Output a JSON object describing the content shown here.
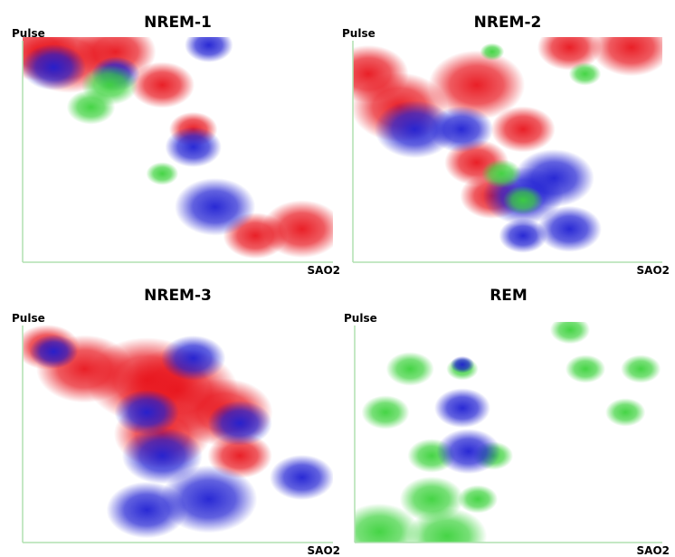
{
  "chart_data": [
    {
      "type": "scatter",
      "title": "NREM-1",
      "x_label": "SAO2",
      "y_label": "Pulse",
      "xlim": [
        0,
        100
      ],
      "ylim": [
        0,
        100
      ],
      "series": [
        {
          "color": "#e8141c",
          "x": [
            5,
            15,
            30,
            45,
            55,
            90,
            75
          ],
          "values": [
            95,
            92,
            95,
            80,
            60,
            15,
            12
          ],
          "sizes": [
            10,
            12,
            10,
            8,
            6,
            10,
            8
          ]
        },
        {
          "color": "#1e1ed2",
          "x": [
            10,
            30,
            55,
            62,
            60
          ],
          "values": [
            88,
            85,
            52,
            25,
            98
          ],
          "sizes": [
            8,
            6,
            7,
            10,
            6
          ]
        },
        {
          "color": "#3cd23c",
          "x": [
            28,
            22,
            45
          ],
          "values": [
            80,
            70,
            40
          ],
          "sizes": [
            7,
            6,
            4
          ]
        }
      ]
    },
    {
      "type": "scatter",
      "title": "NREM-2",
      "x_label": "SAO2",
      "y_label": "Pulse",
      "xlim": [
        0,
        100
      ],
      "ylim": [
        0,
        100
      ],
      "series": [
        {
          "color": "#e8141c",
          "x": [
            5,
            15,
            40,
            55,
            40,
            90,
            70,
            45
          ],
          "values": [
            85,
            70,
            80,
            60,
            45,
            97,
            97,
            30
          ],
          "sizes": [
            10,
            12,
            12,
            8,
            8,
            10,
            8,
            8
          ]
        },
        {
          "color": "#1e1ed2",
          "x": [
            20,
            35,
            55,
            65,
            70,
            55
          ],
          "values": [
            60,
            60,
            30,
            38,
            15,
            12
          ],
          "sizes": [
            10,
            8,
            10,
            10,
            8,
            6
          ]
        },
        {
          "color": "#3cd23c",
          "x": [
            48,
            55,
            75,
            45
          ],
          "values": [
            40,
            28,
            85,
            95
          ],
          "sizes": [
            5,
            5,
            4,
            3
          ]
        }
      ]
    },
    {
      "type": "scatter",
      "title": "NREM-3",
      "x_label": "SAO2",
      "y_label": "Pulse",
      "xlim": [
        0,
        100
      ],
      "ylim": [
        0,
        100
      ],
      "series": [
        {
          "color": "#e8141c",
          "x": [
            40,
            50,
            20,
            65,
            45,
            70,
            8
          ],
          "values": [
            75,
            70,
            80,
            60,
            50,
            40,
            90
          ],
          "sizes": [
            15,
            15,
            12,
            12,
            12,
            8,
            8
          ]
        },
        {
          "color": "#1e1ed2",
          "x": [
            10,
            45,
            60,
            40,
            90,
            70,
            40,
            55
          ],
          "values": [
            88,
            40,
            20,
            15,
            30,
            55,
            60,
            85
          ],
          "sizes": [
            6,
            10,
            12,
            10,
            8,
            8,
            8,
            8
          ]
        }
      ]
    },
    {
      "type": "scatter",
      "title": "REM",
      "x_label": "SAO2",
      "y_label": "Pulse",
      "xlim": [
        0,
        100
      ],
      "ylim": [
        0,
        100
      ],
      "series": [
        {
          "color": "#3cd23c",
          "x": [
            18,
            10,
            35,
            25,
            40,
            8,
            30,
            70,
            75,
            93,
            88,
            25,
            45
          ],
          "values": [
            80,
            60,
            80,
            20,
            20,
            5,
            3,
            98,
            80,
            80,
            60,
            40,
            40
          ],
          "sizes": [
            6,
            6,
            4,
            8,
            5,
            10,
            10,
            5,
            5,
            5,
            5,
            6,
            5
          ]
        },
        {
          "color": "#1e1ed2",
          "x": [
            35,
            37,
            35
          ],
          "values": [
            62,
            42,
            82
          ],
          "sizes": [
            7,
            8,
            3
          ]
        }
      ]
    }
  ]
}
